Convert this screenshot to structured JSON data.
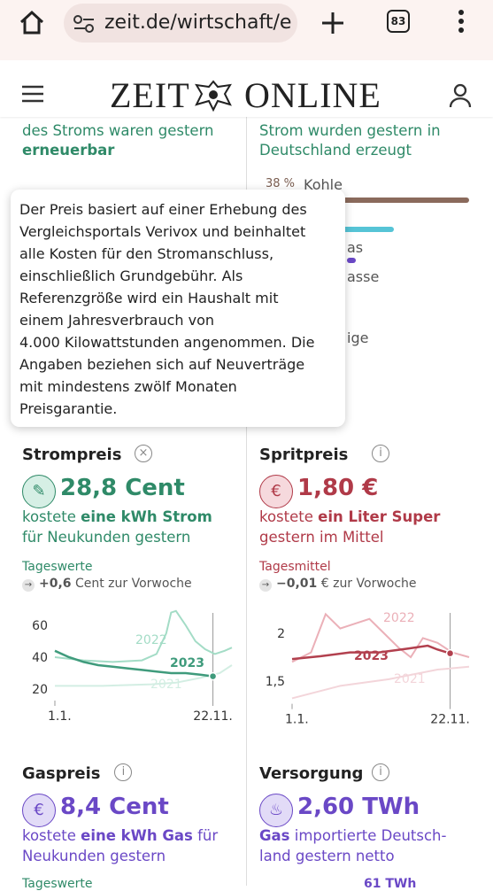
{
  "browser": {
    "url": "zeit.de/wirtschaft/e",
    "tabs": "83"
  },
  "header": {
    "logo_left": "ZEIT",
    "logo_right": "ONLINE"
  },
  "background": {
    "left": [
      "des Stroms waren gestern",
      "erneuerbar"
    ],
    "right": [
      "Strom wurden gestern in",
      "Deutschland erzeugt"
    ],
    "kohle": {
      "value": 38,
      "label": "38 %",
      "name": "Kohle"
    },
    "fragments": [
      "as",
      "asse",
      "ige"
    ]
  },
  "tooltip": {
    "lines": [
      "Der Preis basiert auf einer Erhebung des",
      "Vergleichsportals Verivox und beinhaltet",
      "alle Kosten für den Stromanschluss,",
      "einschließlich Grundgebühr. Als",
      "Referenzgröße wird ein Haushalt mit",
      "einem Jahresverbrauch von",
      "4.000 Kilowattstunden angenommen. Die",
      "Angaben beziehen sich auf Neuverträge",
      "mit mindestens zwölf Monaten",
      "Preisgarantie."
    ]
  },
  "cards": [
    {
      "title": "Strompreis",
      "color": "#2f8a68",
      "icon_bg": "#d6efe5",
      "value": "28,8 Cent",
      "description": [
        {
          "text": "kostete ",
          "bold": false
        },
        {
          "text": "eine kWh Strom",
          "bold": true
        },
        {
          "text": " für Neukunden gestern",
          "bold": false
        }
      ],
      "caption": "Tageswerte",
      "change": "+0,6",
      "change_text": " Cent zur Vorwoche",
      "chart": {
        "type": "line",
        "xlim": [
          1,
          365
        ],
        "ylim": [
          15,
          70
        ],
        "yticks": [
          20,
          40,
          60
        ],
        "xticks": [
          {
            "value": 1,
            "label": "1.1."
          },
          {
            "value": 326,
            "label": "22.11."
          }
        ],
        "series": [
          {
            "name": "2021",
            "color": "#d3eee3",
            "x": [
              1,
              100,
              200,
              250,
              300,
              340,
              365
            ],
            "values": [
              22,
              22,
              23,
              24,
              27,
              30,
              35
            ]
          },
          {
            "name": "2022",
            "color": "#a3dcc6",
            "x": [
              1,
              60,
              120,
              180,
              210,
              230,
              240,
              250,
              270,
              290,
              310,
              330,
              350,
              365
            ],
            "values": [
              40,
              38,
              37,
              38,
              42,
              55,
              68,
              69,
              60,
              50,
              45,
              42,
              44,
              46
            ]
          },
          {
            "name": "2023",
            "color": "#3f9b7c",
            "x": [
              1,
              30,
              60,
              90,
              120,
              150,
              180,
              210,
              240,
              270,
              300,
              326
            ],
            "values": [
              44,
              40,
              37,
              35,
              34,
              33,
              32,
              31,
              30,
              30,
              29,
              28
            ]
          }
        ]
      }
    },
    {
      "title": "Spritpreis",
      "color": "#b03a48",
      "icon_bg": "#f6d9dd",
      "value": "1,80 €",
      "description": [
        {
          "text": "kostete ",
          "bold": false
        },
        {
          "text": "ein Liter Super",
          "bold": true
        },
        {
          "text": " gestern im Mittel",
          "bold": false
        }
      ],
      "caption": "Tagesmittel",
      "change": "−0,01",
      "change_text": " € zur Vorwoche",
      "chart": {
        "type": "line",
        "xlim": [
          1,
          365
        ],
        "ylim": [
          1.3,
          2.25
        ],
        "yticks": [
          {
            "value": 1.5,
            "label": "1,5"
          },
          2
        ],
        "xticks": [
          {
            "value": 1,
            "label": "1.1."
          },
          {
            "value": 326,
            "label": "22.11."
          }
        ],
        "series": [
          {
            "name": "2021",
            "color": "#f3d5da",
            "x": [
              1,
              100,
              200,
              300,
              365
            ],
            "values": [
              1.32,
              1.45,
              1.52,
              1.62,
              1.65
            ]
          },
          {
            "name": "2022",
            "color": "#ebb0b8",
            "x": [
              1,
              40,
              70,
              100,
              130,
              160,
              190,
              220,
              245,
              270,
              300,
              330,
              365
            ],
            "values": [
              1.7,
              1.8,
              2.2,
              2.05,
              2.1,
              2.15,
              2.0,
              1.85,
              1.75,
              1.95,
              1.9,
              1.8,
              1.75
            ]
          },
          {
            "name": "2023",
            "color": "#b2404e",
            "x": [
              1,
              60,
              120,
              180,
              240,
              280,
              300,
              326
            ],
            "values": [
              1.73,
              1.76,
              1.8,
              1.8,
              1.84,
              1.87,
              1.83,
              1.79
            ]
          }
        ]
      }
    },
    {
      "title": "Gaspreis",
      "color": "#6a48c6",
      "icon_bg": "#e2dbf7",
      "value": "8,4 Cent",
      "description": [
        {
          "text": "kostete ",
          "bold": false
        },
        {
          "text": "eine kWh Gas",
          "bold": true
        },
        {
          "text": " für Neukunden gestern",
          "bold": false
        }
      ],
      "caption": "Tageswerte"
    },
    {
      "title": "Versorgung",
      "color": "#6a48c6",
      "icon_bg": "#e2dbf7",
      "value": "2,60 TWh",
      "description": [
        {
          "text": "Gas",
          "bold": true
        },
        {
          "text": " importierte Deutsch-land gestern netto",
          "bold": false
        }
      ],
      "caption": "61 TWh"
    }
  ]
}
